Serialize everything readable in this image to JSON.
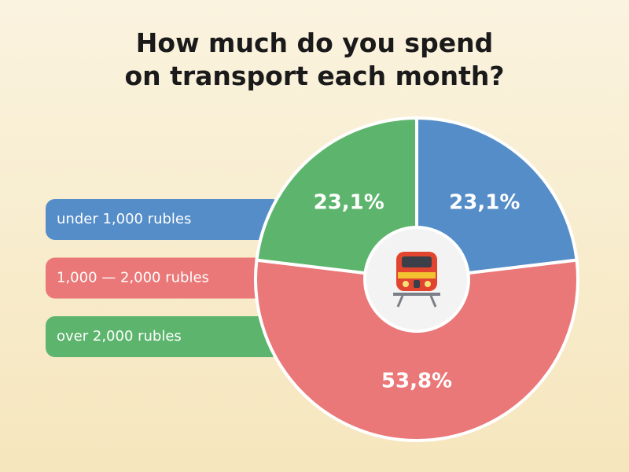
{
  "chart_data": {
    "type": "pie",
    "title": "How much do you spend on transport each month?",
    "categories": [
      "under 1,000 rubles",
      "1,000 — 2,000 rubles",
      "over 2,000 rubles"
    ],
    "values": [
      23.1,
      53.8,
      23.1
    ],
    "value_labels": [
      "23,1%",
      "53,8%",
      "23,1%"
    ],
    "colors": [
      "#558dc8",
      "#ea7878",
      "#5db56d"
    ]
  }
}
